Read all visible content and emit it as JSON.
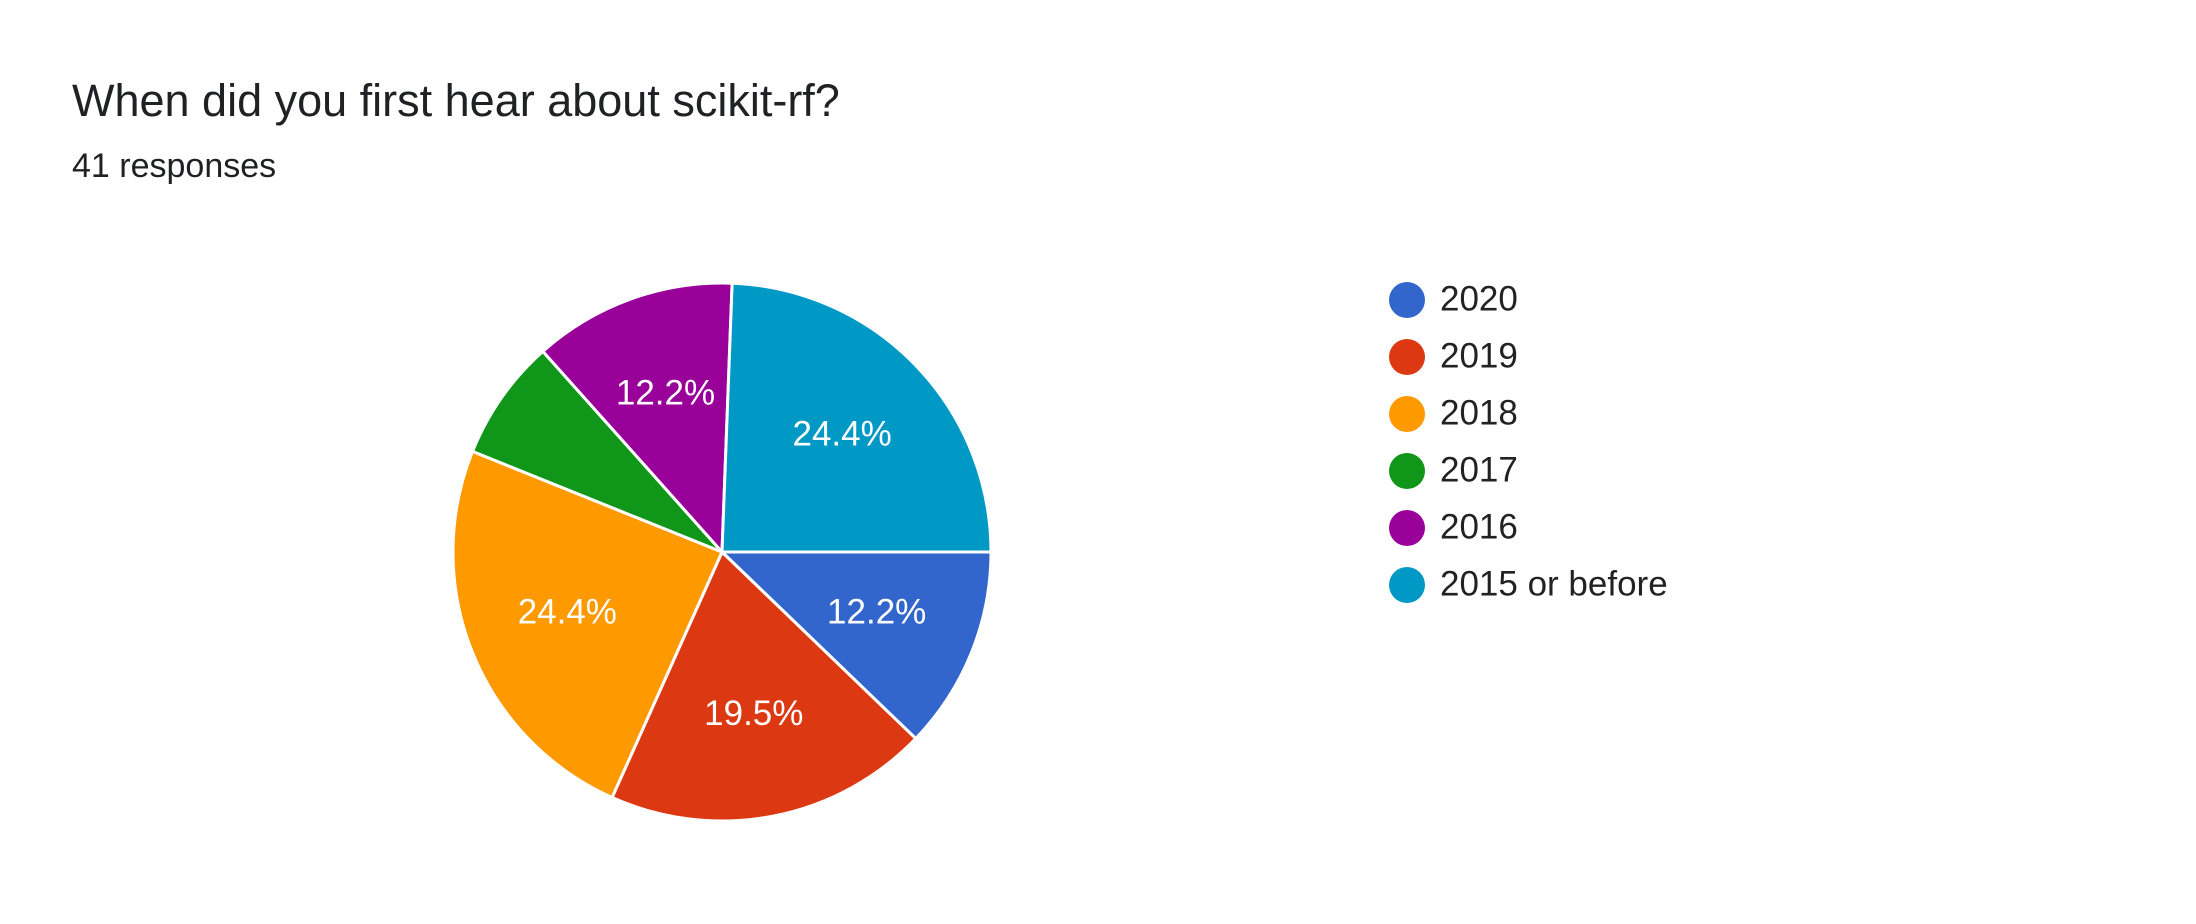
{
  "chart_data": {
    "type": "pie",
    "title": "When did you first hear about scikit-rf?",
    "subtitle": "41 responses",
    "categories": [
      "2020",
      "2019",
      "2018",
      "2017",
      "2016",
      "2015 or before"
    ],
    "values": [
      12.2,
      19.5,
      24.4,
      7.3,
      12.2,
      24.4
    ],
    "value_labels": [
      "12.2%",
      "19.5%",
      "24.4%",
      null,
      "12.2%",
      "24.4%"
    ],
    "colors": [
      "#3366cc",
      "#dc3912",
      "#ff9900",
      "#109618",
      "#990099",
      "#0099c6"
    ],
    "legend": "right"
  }
}
